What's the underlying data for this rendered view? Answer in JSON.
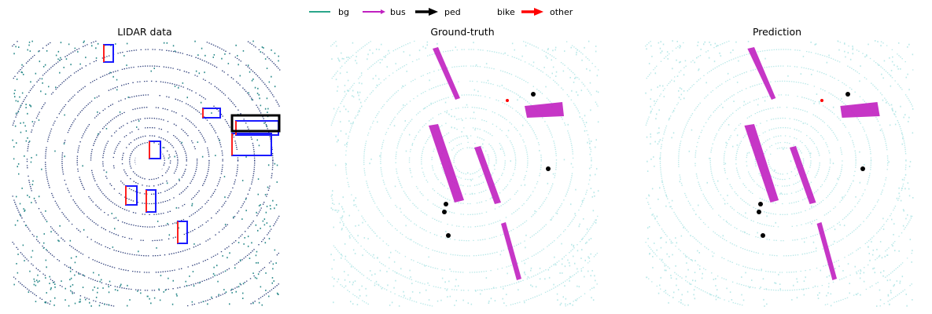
{
  "legend": {
    "items": [
      {
        "label": "bg",
        "color": "#2aa58a"
      },
      {
        "label": "bus",
        "color": "#c020c0"
      },
      {
        "label": "ped",
        "color": "#000000"
      },
      {
        "label": "bike",
        "color": "#ffffff"
      },
      {
        "label": "other",
        "color": "#ff0000"
      }
    ]
  },
  "panels": [
    {
      "title": "LIDAR data"
    },
    {
      "title": "Ground-truth"
    },
    {
      "title": "Prediction"
    }
  ],
  "colors": {
    "lidar_rings": "#34447e",
    "lidar_outer": "#2a8a8a",
    "seg_bg": "#b8e8e8",
    "bus": "#c020c0",
    "ped": "#000000",
    "other": "#ff0000",
    "box_blue": "#1a1aff",
    "box_red": "#ff2020",
    "box_black": "#000000"
  }
}
